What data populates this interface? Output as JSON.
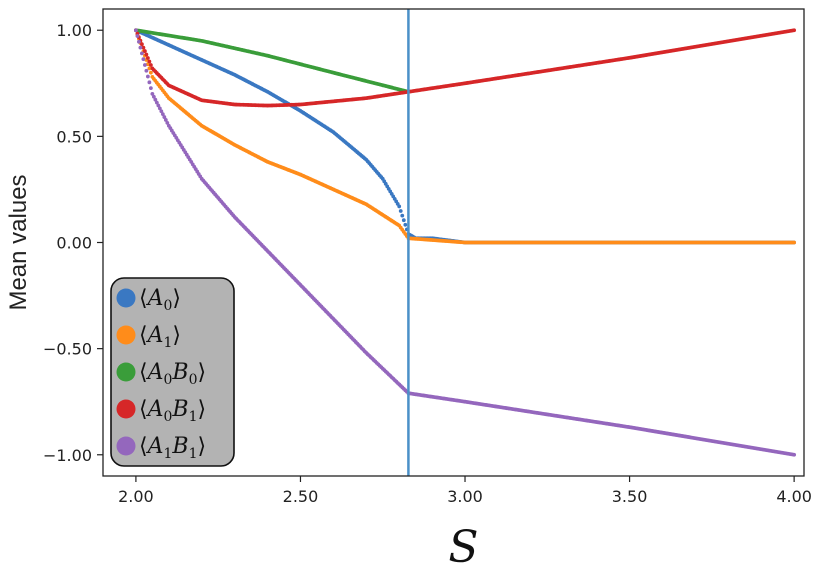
{
  "chart_data": {
    "type": "scatter",
    "title": "",
    "xlabel": "S",
    "ylabel": "Mean values",
    "xlim": [
      1.9,
      4.03
    ],
    "ylim": [
      -1.1,
      1.1
    ],
    "xticks": [
      2.0,
      2.5,
      3.0,
      3.5,
      4.0
    ],
    "xtick_labels": [
      "2.00",
      "2.50",
      "3.00",
      "3.50",
      "4.00"
    ],
    "yticks": [
      1.0,
      0.5,
      0.0,
      -0.5,
      -1.0
    ],
    "ytick_labels": [
      "1.00",
      "0.50",
      "0.00",
      "−0.50",
      "−1.00"
    ],
    "grid": false,
    "legend_position": "lower-left",
    "vline": {
      "x": 2.828,
      "color": "#4a90c8"
    },
    "series": [
      {
        "name": "⟨A₀⟩",
        "legend_base": "A",
        "legend_sub": "0",
        "color": "#3a78c2",
        "x": [
          2.0,
          2.1,
          2.2,
          2.3,
          2.4,
          2.5,
          2.6,
          2.7,
          2.75,
          2.8,
          2.828,
          2.85,
          2.9,
          3.0,
          3.5,
          4.0
        ],
        "y": [
          1.0,
          0.93,
          0.86,
          0.79,
          0.71,
          0.62,
          0.52,
          0.39,
          0.3,
          0.17,
          0.04,
          0.02,
          0.02,
          0.0,
          0.0,
          0.0
        ]
      },
      {
        "name": "⟨A₁⟩",
        "legend_base": "A",
        "legend_sub": "1",
        "color": "#ff8c1a",
        "x": [
          2.0,
          2.05,
          2.1,
          2.2,
          2.3,
          2.4,
          2.5,
          2.6,
          2.7,
          2.8,
          2.828,
          3.0,
          3.5,
          4.0
        ],
        "y": [
          1.0,
          0.78,
          0.68,
          0.55,
          0.46,
          0.38,
          0.32,
          0.25,
          0.18,
          0.08,
          0.02,
          0.0,
          0.0,
          0.0
        ]
      },
      {
        "name": "⟨A₀B₀⟩",
        "legend_base": "A",
        "legend_sub": "0",
        "legend_base2": "B",
        "legend_sub2": "0",
        "color": "#3a9d3a",
        "x": [
          2.0,
          2.2,
          2.4,
          2.6,
          2.828
        ],
        "y": [
          1.0,
          0.95,
          0.88,
          0.8,
          0.71
        ]
      },
      {
        "name": "⟨A₀B₁⟩",
        "legend_base": "A",
        "legend_sub": "0",
        "legend_base2": "B",
        "legend_sub2": "1",
        "color": "#d62728",
        "x": [
          2.0,
          2.05,
          2.1,
          2.2,
          2.3,
          2.4,
          2.5,
          2.6,
          2.7,
          2.828,
          3.0,
          3.5,
          4.0
        ],
        "y": [
          1.0,
          0.82,
          0.74,
          0.67,
          0.65,
          0.645,
          0.65,
          0.665,
          0.68,
          0.71,
          0.75,
          0.87,
          1.0
        ]
      },
      {
        "name": "⟨A₁B₁⟩",
        "legend_base": "A",
        "legend_sub": "1",
        "legend_base2": "B",
        "legend_sub2": "1",
        "color": "#9467bd",
        "x": [
          2.0,
          2.05,
          2.1,
          2.2,
          2.3,
          2.4,
          2.5,
          2.6,
          2.7,
          2.828,
          3.0,
          3.5,
          4.0
        ],
        "y": [
          1.0,
          0.7,
          0.55,
          0.3,
          0.12,
          -0.04,
          -0.2,
          -0.36,
          -0.52,
          -0.71,
          -0.75,
          -0.87,
          -1.0
        ]
      }
    ]
  }
}
